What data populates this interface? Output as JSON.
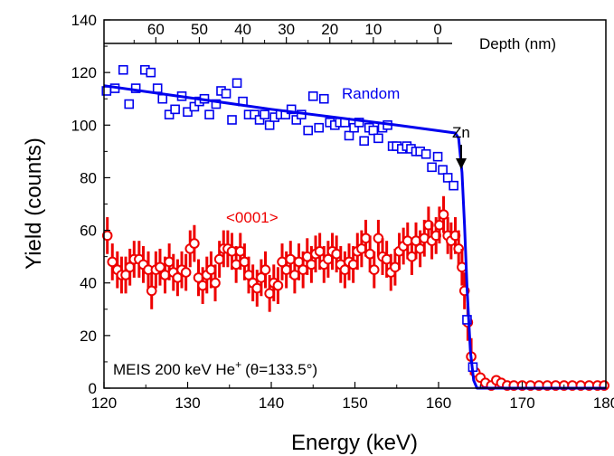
{
  "chart_data": {
    "type": "scatter",
    "xlabel": "Energy (keV)",
    "ylabel": "Yield (counts)",
    "x_ticks": [
      120,
      130,
      140,
      150,
      160,
      170,
      180
    ],
    "y_ticks": [
      0,
      20,
      40,
      60,
      80,
      100,
      120,
      140
    ],
    "xlim": [
      120,
      180
    ],
    "ylim": [
      0,
      140
    ],
    "top_axis": {
      "label": "Depth (nm)",
      "ticks": [
        {
          "label": "60",
          "energy": 126.2
        },
        {
          "label": "50",
          "energy": 131.4
        },
        {
          "label": "40",
          "energy": 136.6
        },
        {
          "label": "30",
          "energy": 141.8
        },
        {
          "label": "20",
          "energy": 147.0
        },
        {
          "label": "10",
          "energy": 152.2
        },
        {
          "label": "0",
          "energy": 159.9
        }
      ],
      "minor_ticks": [
        123.6,
        128.8,
        134.0,
        139.2,
        144.4,
        149.6,
        154.8,
        157.4
      ]
    },
    "annotations": {
      "random": "Random",
      "aligned": "<0001>",
      "zn": "Zn",
      "zn_energy": 163.1,
      "conditions": "MEIS 200 keV He",
      "conditions_sup": "+",
      "conditions_angle": "(θ=133.5°)"
    },
    "colors": {
      "random": "#0000ee",
      "aligned": "#ee0000",
      "axis": "#000000"
    },
    "series": [
      {
        "name": "Random",
        "marker": "square",
        "points": [
          [
            120.3,
            113
          ],
          [
            121.3,
            114
          ],
          [
            122.3,
            121
          ],
          [
            123.0,
            108
          ],
          [
            123.8,
            114
          ],
          [
            124.9,
            121
          ],
          [
            125.6,
            120
          ],
          [
            126.4,
            114
          ],
          [
            127.0,
            110
          ],
          [
            127.8,
            104
          ],
          [
            128.5,
            106
          ],
          [
            129.3,
            111
          ],
          [
            130.0,
            105
          ],
          [
            130.8,
            107
          ],
          [
            131.4,
            109
          ],
          [
            132.0,
            110
          ],
          [
            132.6,
            104
          ],
          [
            133.4,
            108
          ],
          [
            134.0,
            113
          ],
          [
            134.6,
            112
          ],
          [
            135.3,
            102
          ],
          [
            135.9,
            116
          ],
          [
            136.6,
            109
          ],
          [
            137.3,
            104
          ],
          [
            138.0,
            104
          ],
          [
            138.6,
            102
          ],
          [
            139.2,
            104
          ],
          [
            139.8,
            100
          ],
          [
            140.4,
            103
          ],
          [
            141.1,
            104
          ],
          [
            141.7,
            104
          ],
          [
            142.4,
            106
          ],
          [
            143.0,
            102
          ],
          [
            143.6,
            104
          ],
          [
            144.4,
            98
          ],
          [
            145.0,
            111
          ],
          [
            145.7,
            99
          ],
          [
            146.3,
            110
          ],
          [
            147.0,
            101
          ],
          [
            147.6,
            100
          ],
          [
            148.2,
            101
          ],
          [
            148.8,
            101
          ],
          [
            149.3,
            96
          ],
          [
            149.9,
            99
          ],
          [
            150.5,
            101
          ],
          [
            151.1,
            94
          ],
          [
            151.7,
            99
          ],
          [
            152.2,
            98
          ],
          [
            152.8,
            95
          ],
          [
            153.3,
            99
          ],
          [
            153.9,
            100
          ],
          [
            154.5,
            92
          ],
          [
            155.0,
            92
          ],
          [
            155.6,
            91
          ],
          [
            156.2,
            92
          ],
          [
            156.7,
            91
          ],
          [
            157.3,
            90
          ],
          [
            157.8,
            90
          ],
          [
            158.5,
            89
          ],
          [
            159.2,
            84
          ],
          [
            159.9,
            88
          ],
          [
            160.5,
            83
          ],
          [
            161.1,
            80
          ],
          [
            161.8,
            77
          ],
          [
            163.4,
            26
          ],
          [
            164.1,
            8
          ]
        ]
      },
      {
        "name": "<0001>",
        "marker": "circle",
        "error": 7,
        "points": [
          [
            120.4,
            58
          ],
          [
            121.0,
            48
          ],
          [
            121.6,
            45
          ],
          [
            122.1,
            43
          ],
          [
            122.6,
            43
          ],
          [
            123.1,
            46
          ],
          [
            123.6,
            49
          ],
          [
            124.2,
            49
          ],
          [
            124.7,
            47
          ],
          [
            125.3,
            45
          ],
          [
            125.7,
            37
          ],
          [
            126.2,
            45
          ],
          [
            126.7,
            46
          ],
          [
            127.3,
            43
          ],
          [
            127.8,
            48
          ],
          [
            128.3,
            44
          ],
          [
            128.8,
            42
          ],
          [
            129.3,
            45
          ],
          [
            129.8,
            44
          ],
          [
            130.3,
            53
          ],
          [
            130.8,
            55
          ],
          [
            131.3,
            42
          ],
          [
            131.8,
            39
          ],
          [
            132.3,
            43
          ],
          [
            132.8,
            45
          ],
          [
            133.3,
            40
          ],
          [
            133.8,
            49
          ],
          [
            134.3,
            53
          ],
          [
            134.8,
            53
          ],
          [
            135.3,
            52
          ],
          [
            135.8,
            47
          ],
          [
            136.3,
            52
          ],
          [
            136.8,
            48
          ],
          [
            137.3,
            43
          ],
          [
            137.8,
            40
          ],
          [
            138.3,
            38
          ],
          [
            138.8,
            42
          ],
          [
            139.3,
            45
          ],
          [
            139.8,
            36
          ],
          [
            140.3,
            40
          ],
          [
            140.8,
            39
          ],
          [
            141.3,
            48
          ],
          [
            141.8,
            45
          ],
          [
            142.3,
            49
          ],
          [
            142.8,
            43
          ],
          [
            143.3,
            48
          ],
          [
            143.8,
            45
          ],
          [
            144.3,
            50
          ],
          [
            144.8,
            47
          ],
          [
            145.3,
            51
          ],
          [
            145.8,
            52
          ],
          [
            146.3,
            47
          ],
          [
            146.8,
            49
          ],
          [
            147.3,
            52
          ],
          [
            147.8,
            51
          ],
          [
            148.3,
            47
          ],
          [
            148.8,
            45
          ],
          [
            149.3,
            48
          ],
          [
            149.8,
            47
          ],
          [
            150.3,
            52
          ],
          [
            150.8,
            53
          ],
          [
            151.3,
            57
          ],
          [
            151.8,
            51
          ],
          [
            152.3,
            45
          ],
          [
            152.8,
            57
          ],
          [
            153.3,
            50
          ],
          [
            153.8,
            49
          ],
          [
            154.3,
            44
          ],
          [
            154.8,
            46
          ],
          [
            155.3,
            52
          ],
          [
            155.8,
            54
          ],
          [
            156.3,
            56
          ],
          [
            156.8,
            50
          ],
          [
            157.3,
            56
          ],
          [
            157.8,
            53
          ],
          [
            158.3,
            57
          ],
          [
            158.8,
            62
          ],
          [
            159.2,
            56
          ],
          [
            159.7,
            58
          ],
          [
            160.1,
            62
          ],
          [
            160.6,
            66
          ],
          [
            161.1,
            58
          ],
          [
            161.5,
            56
          ],
          [
            162.0,
            58
          ],
          [
            162.4,
            53
          ],
          [
            162.8,
            46
          ],
          [
            163.1,
            37
          ],
          [
            163.5,
            25
          ],
          [
            163.9,
            12
          ],
          [
            164.4,
            6
          ],
          [
            165.0,
            4
          ],
          [
            165.6,
            2
          ],
          [
            166.3,
            1
          ],
          [
            166.9,
            3
          ],
          [
            167.5,
            2
          ],
          [
            168.2,
            1
          ],
          [
            169.0,
            1
          ],
          [
            170.0,
            1
          ],
          [
            171.0,
            1
          ],
          [
            172.0,
            1
          ],
          [
            173.0,
            1
          ],
          [
            174.0,
            1
          ],
          [
            175.0,
            1
          ],
          [
            176.0,
            1
          ],
          [
            177.0,
            1
          ],
          [
            178.0,
            1
          ],
          [
            179.0,
            1
          ],
          [
            179.8,
            1
          ]
        ]
      }
    ],
    "fit_line": {
      "name": "Random fit",
      "points": [
        [
          120,
          115
        ],
        [
          140,
          106
        ],
        [
          155,
          100
        ],
        [
          162.0,
          97
        ],
        [
          162.4,
          95
        ],
        [
          162.8,
          82
        ],
        [
          163.1,
          62
        ],
        [
          163.4,
          38
        ],
        [
          163.8,
          14
        ],
        [
          164.2,
          3
        ],
        [
          164.6,
          0
        ],
        [
          180,
          0
        ]
      ]
    }
  }
}
